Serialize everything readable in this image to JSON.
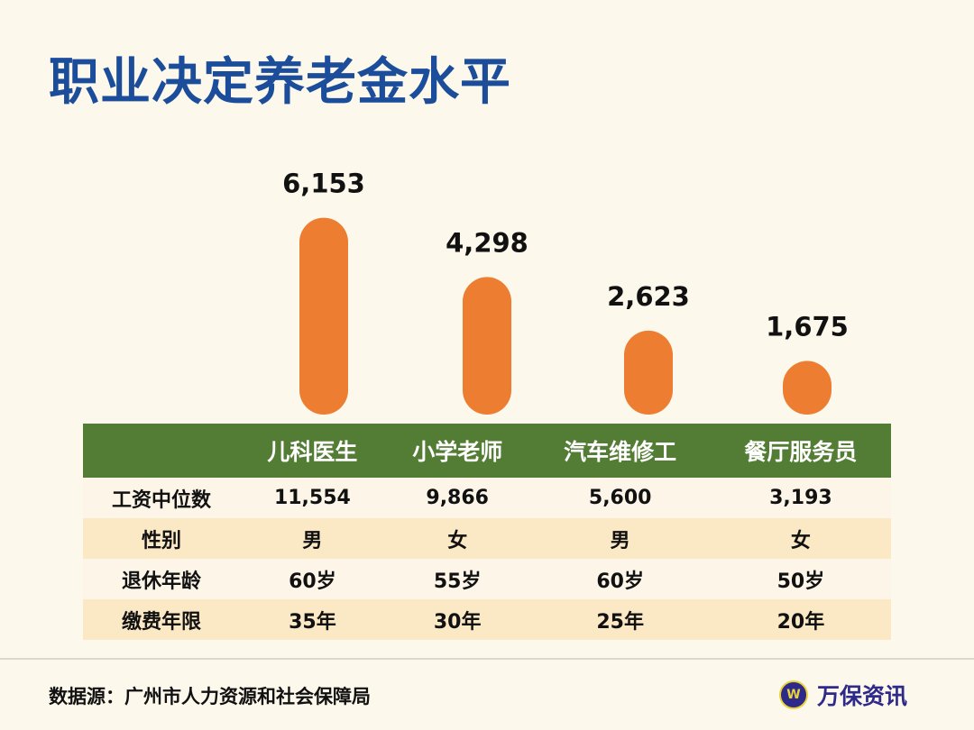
{
  "title": "职业决定养老金水平",
  "chart_data": {
    "type": "bar",
    "categories": [
      "儿科医生",
      "小学老师",
      "汽车维修工",
      "餐厅服务员"
    ],
    "values": [
      6153,
      4298,
      2623,
      1675
    ],
    "value_labels": [
      "6,153",
      "4,298",
      "2,623",
      "1,675"
    ],
    "bar_color": "#ed7d31"
  },
  "table": {
    "headers": [
      "",
      "儿科医生",
      "小学老师",
      "汽车维修工",
      "餐厅服务员"
    ],
    "rows": [
      [
        "工资中位数",
        "11,554",
        "9,866",
        "5,600",
        "3,193"
      ],
      [
        "性别",
        "男",
        "女",
        "男",
        "女"
      ],
      [
        "退休年龄",
        "60岁",
        "55岁",
        "60岁",
        "50岁"
      ],
      [
        "缴费年限",
        "35年",
        "30年",
        "25年",
        "20年"
      ]
    ],
    "header_color": "#537d34"
  },
  "footer": {
    "source": "数据源：广州市人力资源和社会保障局",
    "brand": "万保资讯"
  }
}
